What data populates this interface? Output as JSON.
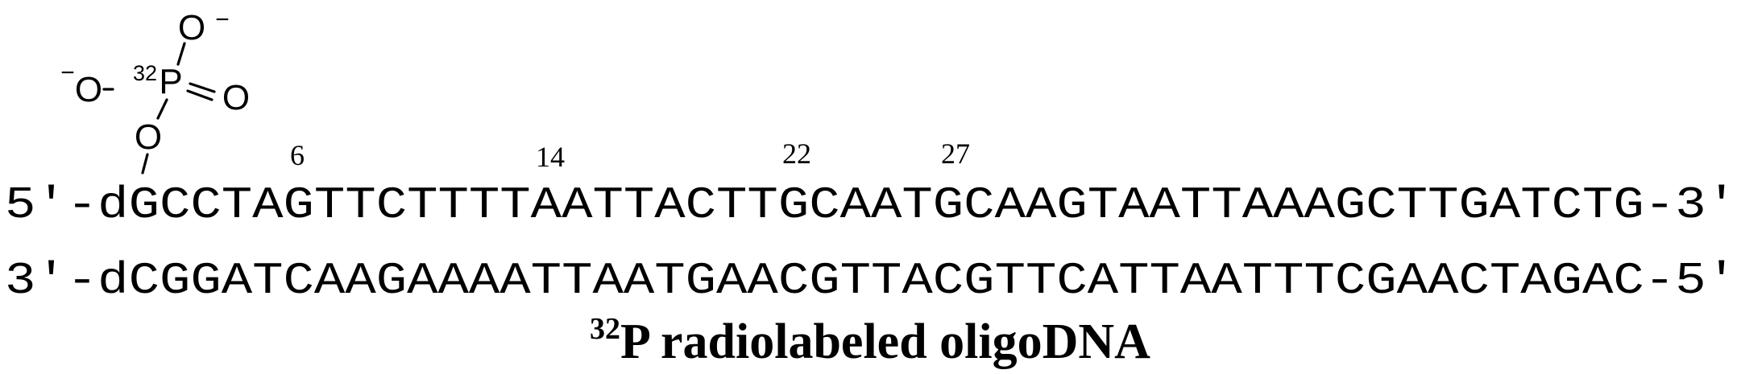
{
  "phosphate": {
    "atom_o_top": "O",
    "charge_top": "−",
    "atom_o_left": "O",
    "charge_left": "−",
    "isotope": "32",
    "atom_p": "P",
    "atom_o_right": "O",
    "atom_o_bottom": "O"
  },
  "positions": [
    "6",
    "14",
    "22",
    "27"
  ],
  "strands": {
    "top": "5'-dGCCTAGTTCTTTTAATTACTTGCAATGCAAGTAATTAAAGCTTGATCTG-3'",
    "bottom": "3'-dCGGATCAAGAAAATTAATGAACGTTACGTTCATTAATTTCGAACTAGAC-5'"
  },
  "caption": {
    "superscript": "32",
    "text": "P radiolabeled oligoDNA"
  }
}
